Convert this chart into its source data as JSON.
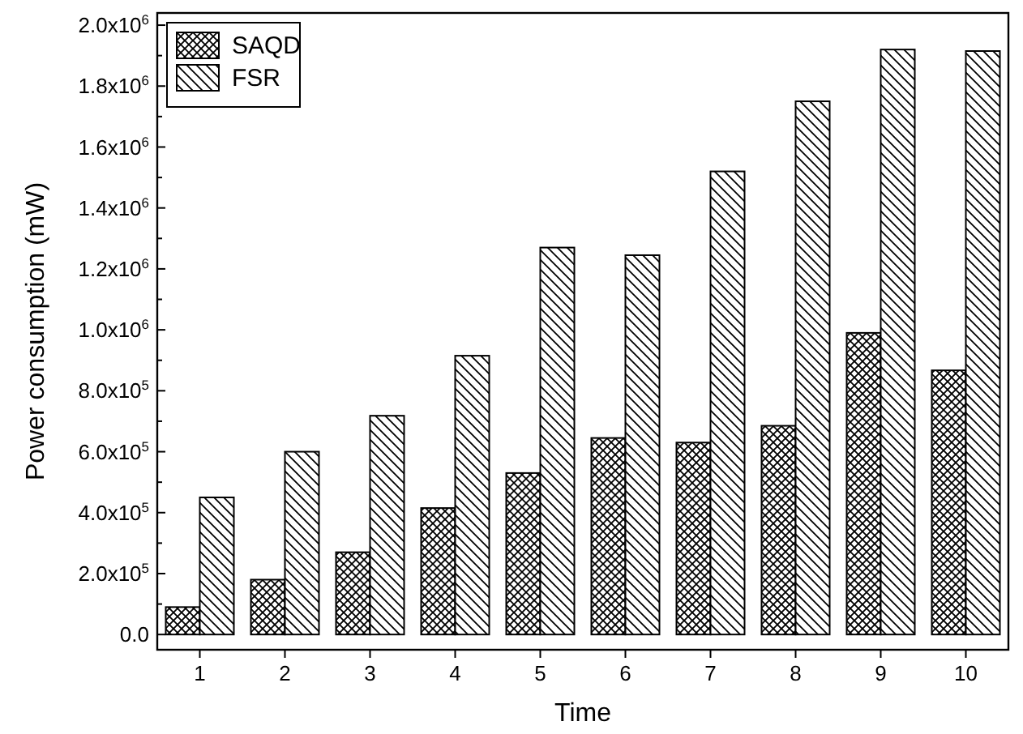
{
  "chart_data": {
    "type": "bar",
    "xlabel": "Time",
    "ylabel": "Power consumption (mW)",
    "categories": [
      "1",
      "2",
      "3",
      "4",
      "5",
      "6",
      "7",
      "8",
      "9",
      "10"
    ],
    "series": [
      {
        "name": "SAQD",
        "color": "#000000",
        "values": [
          90000,
          180000,
          270000,
          415000,
          530000,
          645000,
          630000,
          685000,
          990000,
          867000
        ]
      },
      {
        "name": "FSR",
        "color": "#000000",
        "values": [
          450000,
          600000,
          718000,
          915000,
          1270000,
          1245000,
          1520000,
          1750000,
          1920000,
          1915000
        ]
      }
    ],
    "ylim": [
      -50000,
      2040000
    ],
    "yticks": [
      {
        "value": 0,
        "label": "0.0"
      },
      {
        "value": 200000,
        "label": "2.0x10$^{5}$"
      },
      {
        "value": 400000,
        "label": "4.0x10$^{5}$"
      },
      {
        "value": 600000,
        "label": "6.0x10$^{5}$"
      },
      {
        "value": 800000,
        "label": "8.0x10$^{5}$"
      },
      {
        "value": 1000000,
        "label": "1.0x10$^{6}$"
      },
      {
        "value": 1200000,
        "label": "1.2x10$^{6}$"
      },
      {
        "value": 1400000,
        "label": "1.4x10$^{6}$"
      },
      {
        "value": 1600000,
        "label": "1.6x10$^{6}$"
      },
      {
        "value": 1800000,
        "label": "1.8x10$^{6}$"
      },
      {
        "value": 2000000,
        "label": "2.0x10$^{6}$"
      }
    ],
    "legend": "top left",
    "grid": false
  }
}
